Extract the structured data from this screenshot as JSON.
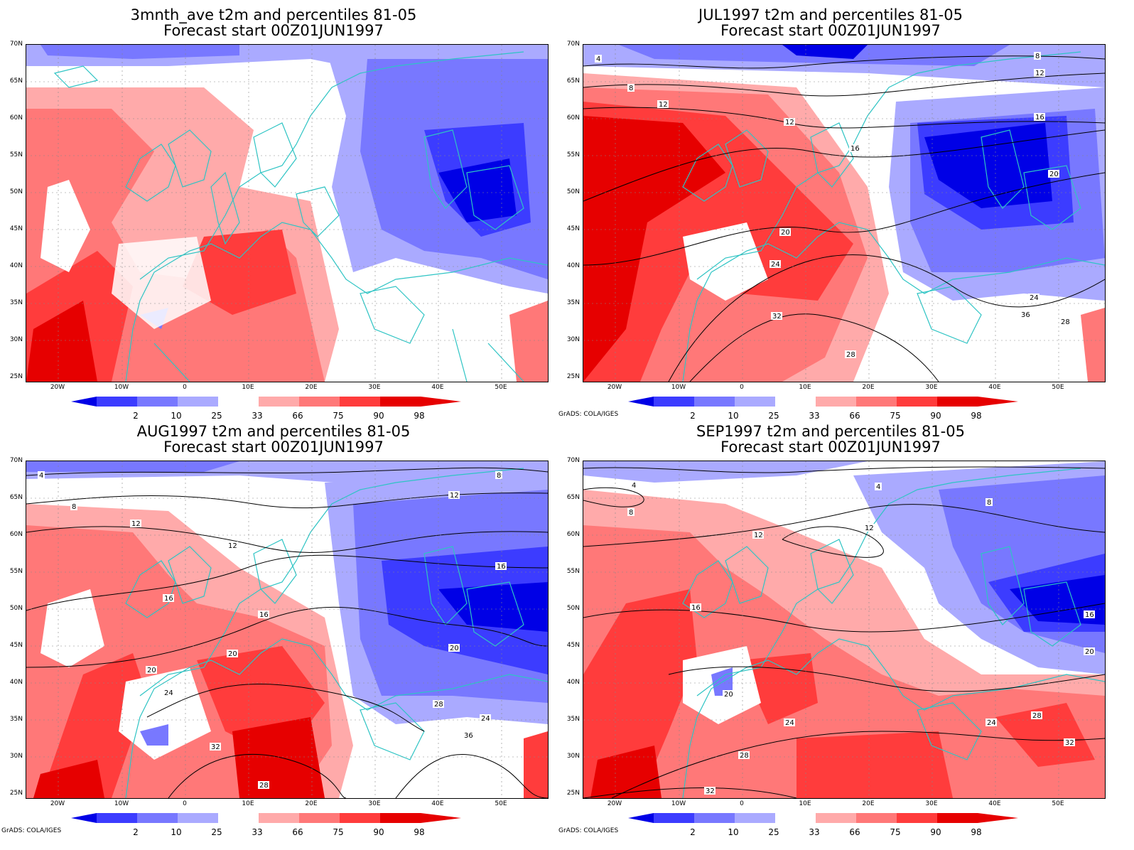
{
  "panels": [
    {
      "title1": "3mnth_ave t2m and percentiles 81-05",
      "title2": "Forecast start 00Z01JUN1997",
      "credit": ""
    },
    {
      "title1": "JUL1997 t2m and percentiles 81-05",
      "title2": "Forecast start 00Z01JUN1997",
      "credit": "GrADS: COLA/IGES"
    },
    {
      "title1": "AUG1997 t2m and percentiles 81-05",
      "title2": "Forecast start 00Z01JUN1997",
      "credit": "GrADS: COLA/IGES"
    },
    {
      "title1": "SEP1997 t2m and percentiles 81-05",
      "title2": "Forecast start 00Z01JUN1997",
      "credit": "GrADS: COLA/IGES"
    }
  ],
  "lat_labels": [
    "70N",
    "65N",
    "60N",
    "55N",
    "50N",
    "45N",
    "40N",
    "35N",
    "30N",
    "25N"
  ],
  "lon_labels": [
    "20W",
    "10W",
    "0",
    "10E",
    "20E",
    "30E",
    "40E",
    "50E"
  ],
  "colorbar": {
    "labels": [
      "2",
      "10",
      "25",
      "33",
      "66",
      "75",
      "90",
      "98"
    ],
    "colors": [
      "#0000e6",
      "#3c3cff",
      "#7878ff",
      "#aaaaff",
      "#ffffff",
      "#ffaaaa",
      "#ff7878",
      "#ff3c3c",
      "#e60000"
    ]
  },
  "contour_labels": {
    "jul": [
      "4",
      "8",
      "12",
      "12",
      "16",
      "20",
      "24",
      "28",
      "32",
      "36",
      "8",
      "12",
      "16",
      "20",
      "24",
      "28"
    ],
    "aug": [
      "4",
      "8",
      "12",
      "12",
      "16",
      "16",
      "20",
      "20",
      "24",
      "28",
      "32",
      "36",
      "8",
      "12",
      "16",
      "20",
      "24",
      "28"
    ],
    "sep": [
      "4",
      "8",
      "12",
      "16",
      "20",
      "24",
      "28",
      "32",
      "4",
      "8",
      "12",
      "16",
      "20",
      "24",
      "28",
      "32"
    ]
  },
  "colors": {
    "coast": "#2ec4c4",
    "contour": "#000000"
  }
}
